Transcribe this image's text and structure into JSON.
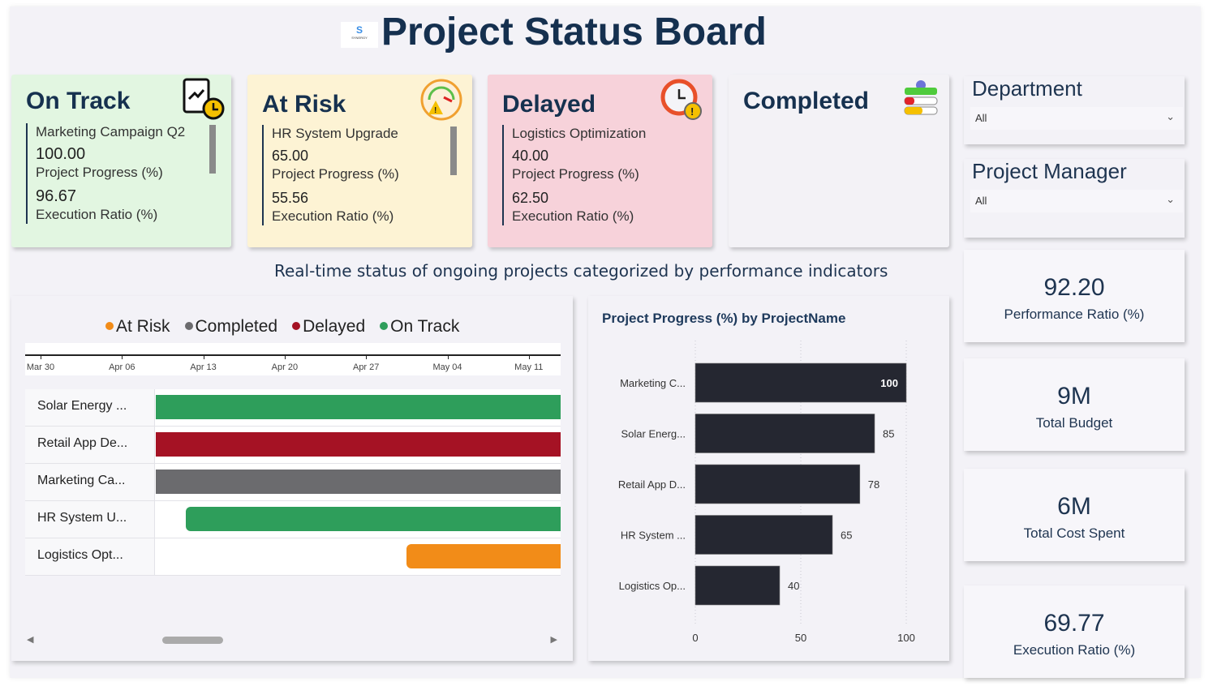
{
  "header": {
    "title": "Project Status Board",
    "logo_text": "S",
    "logo_sub": "SYNERGY"
  },
  "status_cards": [
    {
      "title": "On Track",
      "project": "Marketing Campaign Q2",
      "progress": "100.00",
      "progress_label": "Project Progress (%)",
      "exec": "96.67",
      "exec_label": "Execution Ratio (%)",
      "color": "#e2f6e1"
    },
    {
      "title": "At Risk",
      "project": "HR System Upgrade",
      "progress": "65.00",
      "progress_label": "Project Progress (%)",
      "exec": "55.56",
      "exec_label": "Execution Ratio (%)",
      "color": "#fdf3d4"
    },
    {
      "title": "Delayed",
      "project": "Logistics Optimization",
      "progress": "40.00",
      "progress_label": "Project Progress (%)",
      "exec": "62.50",
      "exec_label": "Execution Ratio (%)",
      "color": "#f7d2da"
    },
    {
      "title": "Completed",
      "color": "#f3f2f6"
    }
  ],
  "filters": {
    "department": {
      "label": "Department",
      "value": "All"
    },
    "manager": {
      "label": "Project Manager",
      "value": "All"
    }
  },
  "kpis": [
    {
      "value": "92.20",
      "label": "Performance Ratio (%)"
    },
    {
      "value": "9M",
      "label": "Total Budget"
    },
    {
      "value": "6M",
      "label": "Total Cost Spent"
    },
    {
      "value": "69.77",
      "label": "Execution Ratio (%)"
    }
  ],
  "subtitle": "Real-time status of ongoing projects categorized by performance indicators",
  "gantt": {
    "legend": [
      {
        "label": "At Risk",
        "color": "#f28c18"
      },
      {
        "label": "Completed",
        "color": "#6b6b6e"
      },
      {
        "label": "Delayed",
        "color": "#a51224"
      },
      {
        "label": "On Track",
        "color": "#2e9e5b"
      }
    ],
    "ticks": [
      "Mar 30",
      "Apr 06",
      "Apr 13",
      "Apr 20",
      "Apr 27",
      "May 04",
      "May 11"
    ],
    "rows": [
      {
        "name": "Solar Energy ...",
        "start_day": 9,
        "end_day": 45,
        "color": "#2e9e5b"
      },
      {
        "name": "Retail App De...",
        "start_day": 9,
        "end_day": 45,
        "color": "#a51224"
      },
      {
        "name": "Marketing Ca...",
        "start_day": 9,
        "end_day": 45,
        "color": "#6b6b6e"
      },
      {
        "name": "HR System U...",
        "start_day": 12.5,
        "end_day": 45,
        "color": "#2e9e5b"
      },
      {
        "name": "Logistics Opt...",
        "start_day": 31.5,
        "end_day": 45,
        "color": "#f28c18"
      }
    ]
  },
  "chart_data": {
    "type": "bar",
    "title": "Project Progress (%) by ProjectName",
    "categories": [
      "Marketing C...",
      "Solar Energ...",
      "Retail App D...",
      "HR System ...",
      "Logistics Op..."
    ],
    "values": [
      100,
      85,
      78,
      65,
      40
    ],
    "xlim": [
      0,
      100
    ],
    "xticks": [
      "0",
      "50",
      "100"
    ],
    "grid": true,
    "xlabel": "",
    "ylabel": ""
  }
}
